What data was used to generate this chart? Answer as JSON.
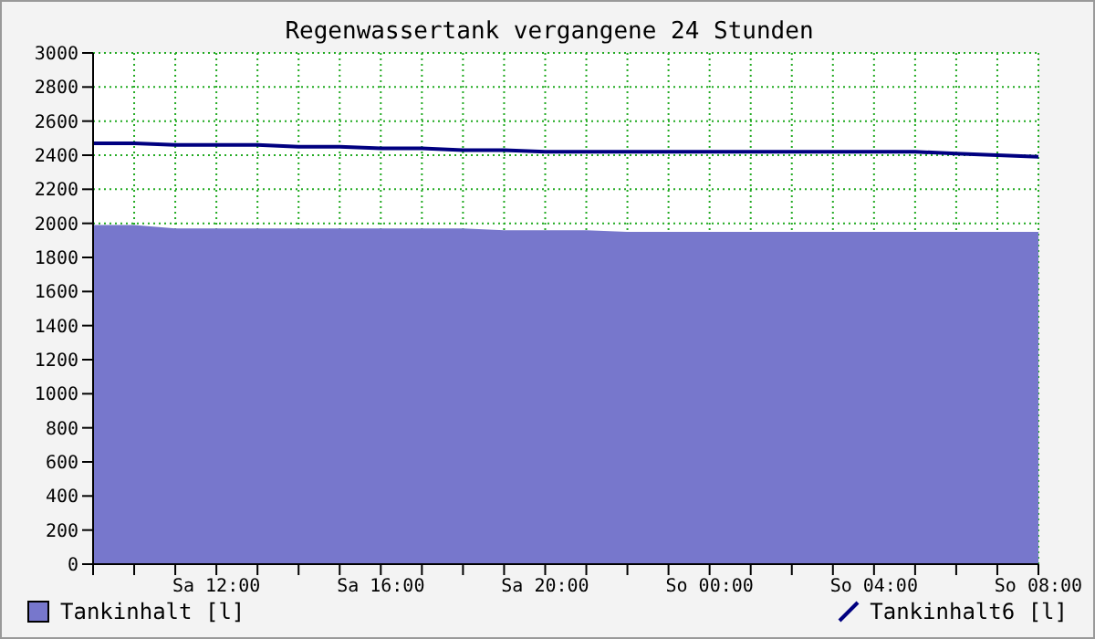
{
  "chart_data": {
    "type": "area",
    "title": "Regenwassertank vergangene 24 Stunden",
    "categories": [
      null,
      null,
      null,
      "Sa 12:00",
      null,
      null,
      null,
      "Sa 16:00",
      null,
      null,
      null,
      "Sa 20:00",
      null,
      null,
      null,
      "So 00:00",
      null,
      null,
      null,
      "So 04:00",
      null,
      null,
      null,
      "So 08:00"
    ],
    "series": [
      {
        "name": "Tankinhalt [l]",
        "color": "#7777cc",
        "values": [
          1990,
          1990,
          1970,
          1970,
          1970,
          1970,
          1970,
          1970,
          1970,
          1970,
          1960,
          1960,
          1960,
          1950,
          1950,
          1950,
          1950,
          1950,
          1950,
          1950,
          1950,
          1950,
          1950,
          1950
        ]
      },
      {
        "name": "Tankinhalt6 [l]",
        "type": "line",
        "color": "#000080",
        "values": [
          2470,
          2470,
          2460,
          2460,
          2460,
          2450,
          2450,
          2440,
          2440,
          2430,
          2430,
          2420,
          2420,
          2420,
          2420,
          2420,
          2420,
          2420,
          2420,
          2420,
          2420,
          2410,
          2400,
          2390
        ]
      }
    ],
    "ylim": [
      0,
      3000
    ],
    "yticks": [
      0,
      200,
      400,
      600,
      800,
      1000,
      1200,
      1400,
      1600,
      1800,
      2000,
      2200,
      2400,
      2600,
      2800,
      3000
    ],
    "grid": true,
    "legend": "bottom",
    "marker": "none",
    "line_style": "solid"
  }
}
